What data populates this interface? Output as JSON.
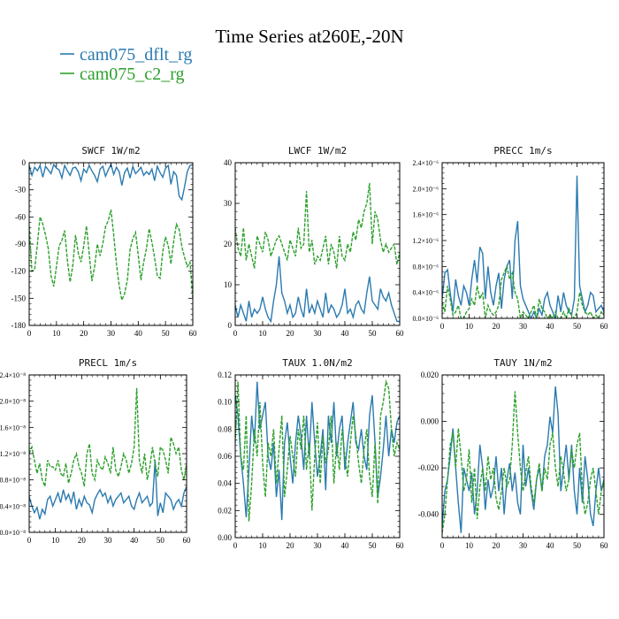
{
  "figure": {
    "title": "Time Series at260E,-20N"
  },
  "colors": {
    "series_1": "#2a7ab0",
    "series_2": "#2ca02c"
  },
  "legend": [
    {
      "name": "cam075_dflt_rg",
      "color": "#2a7ab0",
      "style": "solid"
    },
    {
      "name": "cam075_c2_rg",
      "color": "#2ca02c",
      "style": "solid"
    }
  ],
  "chart_data": [
    {
      "type": "line",
      "title": "SWCF   1W/m2",
      "xlim": [
        0,
        60
      ],
      "ylim": [
        -180,
        0
      ],
      "x_ticks": [
        0,
        10,
        20,
        30,
        40,
        50,
        60
      ],
      "x_tick_labels": [
        "0",
        "10",
        "20",
        "30",
        "40",
        "50",
        "60"
      ],
      "y_ticks": [
        -180,
        -150,
        -120,
        -90,
        -60,
        -30,
        0
      ],
      "y_tick_labels": [
        "-180",
        "-150",
        "-120",
        "-90",
        "-60",
        "-30",
        "0"
      ],
      "series": [
        {
          "values": [
            -3,
            -14,
            -5,
            -9,
            -3,
            -16,
            -4,
            -8,
            -12,
            -2,
            -6,
            -8,
            -17,
            -3,
            -9,
            -14,
            -6,
            -5,
            -10,
            -20,
            -7,
            -11,
            -3,
            -9,
            -14,
            -21,
            -7,
            -4,
            -15,
            -8,
            -2,
            -13,
            -5,
            -10,
            -25,
            -11,
            -6,
            -17,
            -4,
            -12,
            -9,
            -5,
            -14,
            -10,
            -13,
            -7,
            -20,
            -4,
            -11,
            -16,
            -6,
            -3,
            -24,
            -10,
            -14,
            -37,
            -41,
            -26,
            -10,
            -3,
            -2
          ]
        },
        {
          "values": [
            -70,
            -120,
            -118,
            -90,
            -60,
            -68,
            -80,
            -95,
            -125,
            -137,
            -115,
            -92,
            -86,
            -75,
            -108,
            -132,
            -114,
            -80,
            -100,
            -110,
            -92,
            -70,
            -100,
            -131,
            -115,
            -90,
            -103,
            -89,
            -71,
            -64,
            -52,
            -80,
            -112,
            -136,
            -152,
            -145,
            -130,
            -96,
            -84,
            -77,
            -102,
            -130,
            -110,
            -95,
            -73,
            -88,
            -105,
            -125,
            -128,
            -98,
            -82,
            -92,
            -112,
            -87,
            -68,
            -74,
            -93,
            -105,
            -115,
            -110,
            -150
          ]
        }
      ]
    },
    {
      "type": "line",
      "title": "LWCF   1W/m2",
      "xlim": [
        0,
        60
      ],
      "ylim": [
        0,
        40
      ],
      "x_ticks": [
        0,
        10,
        20,
        30,
        40,
        50,
        60
      ],
      "x_tick_labels": [
        "0",
        "10",
        "20",
        "30",
        "40",
        "50",
        "60"
      ],
      "y_ticks": [
        0,
        10,
        20,
        30,
        40
      ],
      "y_tick_labels": [
        "0",
        "10",
        "20",
        "30",
        "40"
      ],
      "series": [
        {
          "values": [
            5,
            2,
            5,
            3,
            1,
            6,
            2,
            4,
            3,
            4,
            7,
            4,
            2,
            1,
            6,
            10,
            17,
            8,
            6,
            3,
            5,
            2,
            3,
            7,
            4,
            2,
            9,
            3,
            5,
            3,
            6,
            4,
            2,
            8,
            3,
            5,
            4,
            2,
            3,
            5,
            9,
            3,
            4,
            2,
            5,
            6,
            4,
            3,
            8,
            12,
            6,
            5,
            4,
            9,
            7,
            6,
            8,
            5,
            3,
            1,
            1
          ]
        },
        {
          "values": [
            24,
            19,
            17,
            24,
            16,
            20,
            17,
            14,
            22,
            20,
            18,
            23,
            21,
            17,
            19,
            21,
            22,
            20,
            18,
            16,
            21,
            19,
            17,
            24,
            19,
            20,
            33,
            18,
            21,
            15,
            17,
            16,
            19,
            22,
            15,
            20,
            18,
            14,
            22,
            17,
            16,
            20,
            18,
            23,
            21,
            26,
            24,
            28,
            30,
            35,
            20,
            28,
            26,
            21,
            18,
            20,
            18,
            19,
            20,
            15,
            18
          ]
        }
      ]
    },
    {
      "type": "line",
      "title": "PRECC   1m/s",
      "xlim": [
        0,
        60
      ],
      "ylim": [
        0,
        2.4
      ],
      "y_unit_exponent": "-6",
      "x_ticks": [
        0,
        10,
        20,
        30,
        40,
        50,
        60
      ],
      "x_tick_labels": [
        "0",
        "10",
        "20",
        "30",
        "40",
        "50",
        "60"
      ],
      "y_ticks": [
        0,
        0.4,
        0.8,
        1.2,
        1.6,
        2.0,
        2.4
      ],
      "y_tick_labels": [
        "0.0×10⁻⁶",
        "0.4×10⁻⁶",
        "0.8×10⁻⁶",
        "1.2×10⁻⁶",
        "1.6×10⁻⁶",
        "2.0×10⁻⁶",
        "2.4×10⁻⁶"
      ],
      "series": [
        {
          "values": [
            0.3,
            0.7,
            0.75,
            0.4,
            0.1,
            0.6,
            0.35,
            0.2,
            0.5,
            0.4,
            0.2,
            0.6,
            0.9,
            0.55,
            1.1,
            1.0,
            0.3,
            0.8,
            0.4,
            0.2,
            0.5,
            0.7,
            0.15,
            0.6,
            0.8,
            0.9,
            0.3,
            1.2,
            1.5,
            0.5,
            0.3,
            0.2,
            0.1,
            0.0,
            0.1,
            0.0,
            0.15,
            0.05,
            0.3,
            0.4,
            0.2,
            0.1,
            0.0,
            0.35,
            0.1,
            0.4,
            0.2,
            0.1,
            0.05,
            0.3,
            2.2,
            0.5,
            0.3,
            0.1,
            0.2,
            0.4,
            0.35,
            0.1,
            0.15,
            0.2,
            0.1
          ]
        },
        {
          "values": [
            0.25,
            0.1,
            0.5,
            0.3,
            0.05,
            0.1,
            0.2,
            0.0,
            0.0,
            0.1,
            0.15,
            0.3,
            0.2,
            0.5,
            0.3,
            0.4,
            0.0,
            0.2,
            0.1,
            0.05,
            0.1,
            0.2,
            0.6,
            0.7,
            0.8,
            0.6,
            0.7,
            0.4,
            0.3,
            0.0,
            0.1,
            0.05,
            0.0,
            0.1,
            0.2,
            0.0,
            0.3,
            0.15,
            0.1,
            0.0,
            0.05,
            0.0,
            0.1,
            0.0,
            0.0,
            0.1,
            0.0,
            0.15,
            0.05,
            0.0,
            0.1,
            0.4,
            0.2,
            0.1,
            0.05,
            0.1,
            0.0,
            0.05,
            0.0,
            0.1,
            0.05
          ]
        }
      ]
    },
    {
      "type": "line",
      "title": "PRECL   1m/s",
      "xlim": [
        0,
        60
      ],
      "ylim": [
        0,
        2.4
      ],
      "y_unit_exponent": "-8",
      "x_ticks": [
        0,
        10,
        20,
        30,
        40,
        50,
        60
      ],
      "x_tick_labels": [
        "0",
        "10",
        "20",
        "30",
        "40",
        "50",
        "60"
      ],
      "y_ticks": [
        0,
        0.4,
        0.8,
        1.2,
        1.6,
        2.0,
        2.4
      ],
      "y_tick_labels": [
        "0.0×10⁻⁸",
        "0.4×10⁻⁸",
        "0.8×10⁻⁸",
        "1.2×10⁻⁸",
        "1.6×10⁻⁸",
        "2.0×10⁻⁸",
        "2.4×10⁻⁸"
      ],
      "series": [
        {
          "values": [
            0.55,
            0.4,
            0.3,
            0.38,
            0.2,
            0.35,
            0.28,
            0.5,
            0.55,
            0.4,
            0.5,
            0.6,
            0.45,
            0.65,
            0.5,
            0.58,
            0.45,
            0.62,
            0.35,
            0.5,
            0.4,
            0.55,
            0.45,
            0.42,
            0.3,
            0.5,
            0.58,
            0.65,
            0.55,
            0.6,
            0.45,
            0.55,
            0.4,
            0.5,
            0.55,
            0.6,
            0.45,
            0.5,
            0.55,
            0.4,
            0.35,
            0.5,
            0.6,
            0.45,
            0.5,
            0.55,
            0.4,
            0.45,
            1.1,
            0.25,
            0.45,
            0.3,
            0.6,
            0.55,
            0.5,
            0.35,
            0.45,
            0.5,
            0.4,
            0.6,
            0.7
          ]
        },
        {
          "values": [
            1.2,
            1.3,
            1.1,
            0.9,
            1.05,
            0.8,
            0.7,
            1.1,
            1.0,
            1.0,
            0.95,
            1.1,
            0.9,
            0.85,
            1.05,
            0.75,
            0.9,
            1.1,
            1.2,
            1.0,
            0.9,
            0.7,
            1.2,
            1.35,
            0.9,
            0.8,
            1.1,
            1.0,
            0.95,
            1.15,
            1.05,
            0.9,
            1.3,
            0.95,
            0.85,
            1.0,
            1.2,
            1.1,
            0.9,
            1.05,
            1.3,
            2.2,
            1.1,
            0.9,
            1.2,
            0.8,
            1.0,
            1.3,
            1.05,
            0.85,
            1.3,
            1.25,
            1.1,
            0.9,
            1.45,
            1.35,
            1.2,
            1.3,
            0.95,
            0.8,
            1.05
          ]
        }
      ]
    },
    {
      "type": "line",
      "title": "TAUX   1.0N/m2",
      "xlim": [
        0,
        60
      ],
      "ylim": [
        0,
        0.12
      ],
      "x_ticks": [
        0,
        10,
        20,
        30,
        40,
        50,
        60
      ],
      "x_tick_labels": [
        "0",
        "10",
        "20",
        "30",
        "40",
        "50",
        "60"
      ],
      "y_ticks": [
        0,
        0.02,
        0.04,
        0.06,
        0.08,
        0.1,
        0.12
      ],
      "y_tick_labels": [
        "0.00",
        "0.02",
        "0.04",
        "0.06",
        "0.08",
        "0.10",
        "0.12"
      ],
      "series": [
        {
          "values": [
            0.105,
            0.09,
            0.06,
            0.04,
            0.015,
            0.05,
            0.09,
            0.07,
            0.115,
            0.08,
            0.09,
            0.1,
            0.06,
            0.05,
            0.07,
            0.03,
            0.05,
            0.013,
            0.07,
            0.085,
            0.06,
            0.04,
            0.07,
            0.09,
            0.075,
            0.05,
            0.09,
            0.06,
            0.1,
            0.07,
            0.045,
            0.06,
            0.08,
            0.035,
            0.09,
            0.07,
            0.1,
            0.06,
            0.08,
            0.09,
            0.05,
            0.07,
            0.085,
            0.1,
            0.07,
            0.065,
            0.08,
            0.06,
            0.05,
            0.09,
            0.105,
            0.07,
            0.03,
            0.045,
            0.065,
            0.09,
            0.06,
            0.08,
            0.07,
            0.085,
            0.09
          ]
        },
        {
          "values": [
            0.07,
            0.115,
            0.06,
            0.05,
            0.09,
            0.012,
            0.04,
            0.08,
            0.06,
            0.1,
            0.055,
            0.03,
            0.07,
            0.06,
            0.08,
            0.04,
            0.065,
            0.09,
            0.03,
            0.05,
            0.075,
            0.06,
            0.045,
            0.08,
            0.065,
            0.09,
            0.05,
            0.07,
            0.02,
            0.06,
            0.085,
            0.04,
            0.075,
            0.055,
            0.065,
            0.09,
            0.04,
            0.07,
            0.05,
            0.08,
            0.06,
            0.045,
            0.07,
            0.09,
            0.075,
            0.055,
            0.04,
            0.065,
            0.08,
            0.045,
            0.03,
            0.07,
            0.025,
            0.09,
            0.1,
            0.115,
            0.11,
            0.08,
            0.06,
            0.07,
            0.065
          ]
        }
      ]
    },
    {
      "type": "line",
      "title": "TAUY   1N/m2",
      "xlim": [
        0,
        60
      ],
      "ylim": [
        -0.05,
        0.02
      ],
      "x_ticks": [
        0,
        10,
        20,
        30,
        40,
        50,
        60
      ],
      "x_tick_labels": [
        "0",
        "10",
        "20",
        "30",
        "40",
        "50",
        "60"
      ],
      "y_ticks": [
        -0.04,
        -0.02,
        0.0,
        0.02
      ],
      "y_tick_labels": [
        "-0.040",
        "-0.020",
        "0.000",
        "0.020"
      ],
      "series": [
        {
          "values": [
            -0.045,
            -0.03,
            -0.025,
            -0.015,
            -0.003,
            -0.02,
            -0.035,
            -0.048,
            -0.02,
            -0.025,
            -0.03,
            -0.022,
            -0.04,
            -0.03,
            -0.01,
            -0.02,
            -0.038,
            -0.025,
            -0.033,
            -0.028,
            -0.015,
            -0.03,
            -0.02,
            -0.04,
            -0.025,
            -0.018,
            -0.03,
            -0.022,
            -0.035,
            -0.04,
            -0.01,
            -0.028,
            -0.02,
            -0.03,
            -0.038,
            -0.025,
            -0.02,
            -0.03,
            -0.015,
            -0.01,
            0.002,
            -0.005,
            0.015,
            0.003,
            -0.03,
            -0.02,
            -0.01,
            -0.025,
            -0.01,
            -0.03,
            -0.04,
            -0.02,
            -0.035,
            -0.015,
            -0.025,
            -0.04,
            -0.045,
            -0.03,
            -0.02,
            -0.03,
            -0.025
          ]
        },
        {
          "values": [
            -0.048,
            -0.04,
            -0.025,
            -0.01,
            -0.005,
            -0.02,
            -0.003,
            -0.015,
            -0.03,
            -0.025,
            -0.012,
            -0.035,
            -0.02,
            -0.042,
            -0.028,
            -0.02,
            -0.03,
            -0.015,
            -0.025,
            -0.02,
            -0.033,
            -0.038,
            -0.03,
            -0.02,
            -0.028,
            -0.025,
            -0.01,
            0.013,
            -0.005,
            -0.02,
            -0.03,
            -0.022,
            -0.015,
            -0.028,
            -0.035,
            -0.025,
            -0.018,
            -0.03,
            -0.02,
            -0.025,
            -0.01,
            -0.005,
            -0.02,
            -0.028,
            -0.015,
            -0.022,
            -0.03,
            -0.025,
            -0.012,
            -0.02,
            -0.01,
            -0.005,
            -0.03,
            -0.04,
            -0.035,
            -0.025,
            -0.02,
            -0.03,
            -0.04,
            -0.03,
            -0.025
          ]
        }
      ]
    }
  ]
}
